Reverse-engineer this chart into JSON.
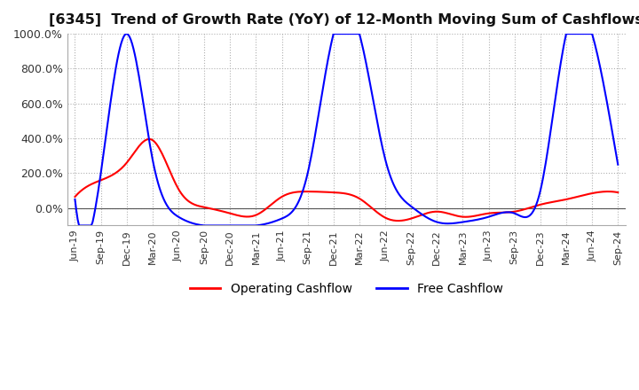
{
  "title": "[6345]  Trend of Growth Rate (YoY) of 12-Month Moving Sum of Cashflows",
  "title_fontsize": 11.5,
  "ylim": [
    -100,
    1000
  ],
  "yticks": [
    0,
    200,
    400,
    600,
    800,
    1000
  ],
  "ytick_labels": [
    "0.0%",
    "200.0%",
    "400.0%",
    "600.0%",
    "800.0%",
    "1000.0%"
  ],
  "background_color": "#ffffff",
  "grid_color": "#b0b0b0",
  "operating_color": "#ff0000",
  "free_color": "#0000ff",
  "x_labels": [
    "Jun-19",
    "Sep-19",
    "Dec-19",
    "Mar-20",
    "Jun-20",
    "Sep-20",
    "Dec-20",
    "Mar-21",
    "Jun-21",
    "Sep-21",
    "Dec-21",
    "Mar-22",
    "Jun-22",
    "Sep-22",
    "Dec-22",
    "Mar-23",
    "Jun-23",
    "Sep-23",
    "Dec-23",
    "Mar-24",
    "Jun-24",
    "Sep-24"
  ],
  "operating_cashflow": [
    65,
    160,
    260,
    390,
    110,
    5,
    -30,
    -40,
    65,
    95,
    90,
    55,
    -55,
    -60,
    -20,
    -50,
    -30,
    -20,
    20,
    50,
    85,
    90
  ],
  "free_cashflow": [
    50,
    200,
    1000,
    280,
    -50,
    -100,
    -100,
    -100,
    -60,
    200,
    1000,
    1000,
    280,
    10,
    -80,
    -80,
    -50,
    -30,
    100,
    1000,
    1000,
    250
  ]
}
